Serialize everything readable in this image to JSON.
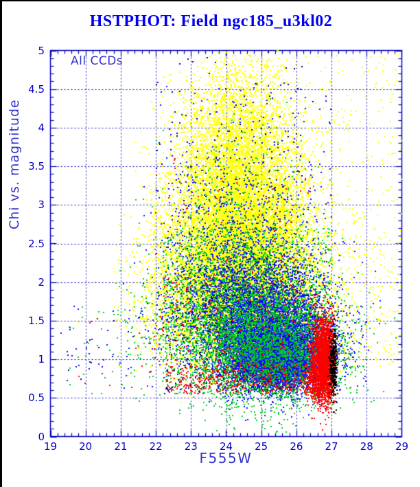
{
  "window": {
    "background": "#FFFFFF",
    "border_color": "#000000"
  },
  "chart_data": {
    "type": "scatter",
    "title": "HSTPHOT: Field ngc185_u3kl02",
    "xlabel": "F555W",
    "ylabel": "Chi vs. magnitude",
    "annotation": "All CCDs",
    "xlim": [
      19,
      29
    ],
    "ylim": [
      0,
      5
    ],
    "grid": true,
    "grid_style": "dashed",
    "legend": "none",
    "x_ticks": [
      {
        "v": 19,
        "label": "19"
      },
      {
        "v": 20,
        "label": "20"
      },
      {
        "v": 21,
        "label": "21"
      },
      {
        "v": 22,
        "label": "22"
      },
      {
        "v": 23,
        "label": "23"
      },
      {
        "v": 24,
        "label": "24"
      },
      {
        "v": 25,
        "label": "25"
      },
      {
        "v": 26,
        "label": "26"
      },
      {
        "v": 27,
        "label": "27"
      },
      {
        "v": 28,
        "label": "28"
      },
      {
        "v": 29,
        "label": "29"
      }
    ],
    "y_ticks": [
      {
        "v": 0,
        "label": "0"
      },
      {
        "v": 0.5,
        "label": "0.5"
      },
      {
        "v": 1,
        "label": "1"
      },
      {
        "v": 1.5,
        "label": "1.5"
      },
      {
        "v": 2,
        "label": "2"
      },
      {
        "v": 2.5,
        "label": "2.5"
      },
      {
        "v": 3,
        "label": "3"
      },
      {
        "v": 3.5,
        "label": "3.5"
      },
      {
        "v": 4,
        "label": "4"
      },
      {
        "v": 4.5,
        "label": "4.5"
      },
      {
        "v": 5,
        "label": "5"
      }
    ],
    "x_minor_step": 0.2,
    "y_minor_step": 0.1,
    "point_size": 2,
    "colors": {
      "frame": "#0000BB",
      "grid": "#0000BB",
      "tick_labels": "#0000CC",
      "title": "#0000EE",
      "axis_labels": "#3333CC"
    },
    "series": [
      {
        "name": "series-yellow",
        "color": "#FFFF00",
        "clusters": [
          [
            "g",
            24.4,
            4.55,
            0.85,
            0.3,
            450
          ],
          [
            "g",
            24.4,
            4.15,
            0.85,
            0.3,
            800
          ],
          [
            "g",
            24.4,
            3.75,
            0.9,
            0.3,
            1300
          ],
          [
            "g",
            24.4,
            3.35,
            0.95,
            0.3,
            2000
          ],
          [
            "g",
            24.4,
            2.95,
            1.0,
            0.3,
            2700
          ],
          [
            "g",
            24.4,
            2.55,
            1.05,
            0.3,
            3200
          ],
          [
            "g",
            24.3,
            2.15,
            1.1,
            0.3,
            3400
          ],
          [
            "g",
            24.3,
            1.8,
            1.15,
            0.28,
            3000
          ],
          [
            "g",
            24.4,
            1.45,
            1.2,
            0.25,
            2100
          ],
          [
            "g",
            24.5,
            1.1,
            1.2,
            0.2,
            1000
          ],
          [
            "u",
            26.6,
            29.0,
            0.9,
            2.6,
            260
          ],
          [
            "u",
            26.6,
            29.0,
            2.6,
            5.0,
            150
          ]
        ]
      },
      {
        "name": "series-blue",
        "color": "#0F0FFF",
        "clusters": [
          [
            "g",
            25.45,
            1.0,
            0.55,
            0.17,
            5200
          ],
          [
            "g",
            25.3,
            1.15,
            0.85,
            0.28,
            4200
          ],
          [
            "g",
            25.0,
            1.5,
            1.0,
            0.33,
            2400
          ],
          [
            "g",
            24.7,
            1.9,
            1.05,
            0.35,
            1400
          ],
          [
            "g",
            24.45,
            2.5,
            1.0,
            0.55,
            700
          ],
          [
            "u",
            22.0,
            27.0,
            0.55,
            4.6,
            350
          ],
          [
            "u",
            19.3,
            22.0,
            0.6,
            1.7,
            45
          ]
        ]
      },
      {
        "name": "series-green",
        "color": "#00CC22",
        "clusters": [
          [
            "g",
            25.25,
            1.1,
            1.05,
            0.38,
            2600
          ],
          [
            "g",
            24.3,
            1.55,
            1.3,
            0.45,
            1700
          ],
          [
            "u",
            22.2,
            27.0,
            0.55,
            2.7,
            1300
          ],
          [
            "g",
            24.4,
            2.7,
            1.0,
            0.65,
            450
          ],
          [
            "u",
            19.5,
            22.2,
            0.5,
            1.7,
            35
          ]
        ]
      },
      {
        "name": "series-navy",
        "color": "#000080",
        "clusters": [
          [
            "u",
            22.2,
            26.8,
            0.55,
            2.2,
            380
          ],
          [
            "u",
            22.0,
            26.5,
            2.2,
            5.0,
            120
          ],
          [
            "u",
            19.5,
            22.2,
            0.6,
            1.6,
            12
          ]
        ]
      },
      {
        "name": "series-red",
        "color": "#FF0000",
        "clusters": [
          [
            "g",
            26.8,
            1.0,
            0.17,
            0.27,
            2400
          ],
          [
            "g",
            26.62,
            0.72,
            0.22,
            0.12,
            500
          ],
          [
            "u",
            22.3,
            26.6,
            0.55,
            0.95,
            420
          ],
          [
            "u",
            22.0,
            26.6,
            0.95,
            2.1,
            260
          ],
          [
            "u",
            22.0,
            26.5,
            2.1,
            3.6,
            60
          ],
          [
            "u",
            19.8,
            22.0,
            0.6,
            1.6,
            14
          ]
        ]
      },
      {
        "name": "series-black",
        "color": "#000000",
        "clusters": [
          [
            "g",
            27.05,
            0.95,
            0.06,
            0.22,
            270
          ]
        ]
      }
    ]
  }
}
